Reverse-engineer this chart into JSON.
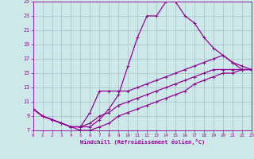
{
  "xlabel": "Windchill (Refroidissement éolien,°C)",
  "xlim": [
    0,
    23
  ],
  "ylim": [
    7,
    25
  ],
  "xticks": [
    0,
    1,
    2,
    3,
    4,
    5,
    6,
    7,
    8,
    9,
    10,
    11,
    12,
    13,
    14,
    15,
    16,
    17,
    18,
    19,
    20,
    21,
    22,
    23
  ],
  "yticks": [
    7,
    9,
    11,
    13,
    15,
    17,
    19,
    21,
    23,
    25
  ],
  "bg_color": "#cce8e8",
  "line_color": "#990099",
  "grid_color": "#aabbcc",
  "lines": [
    {
      "x": [
        0,
        1,
        2,
        3,
        4,
        5,
        6,
        7,
        8,
        9,
        10,
        11,
        12,
        13,
        14,
        15,
        16,
        17,
        18,
        19,
        20,
        21,
        22,
        23
      ],
      "y": [
        10,
        9,
        8.5,
        8,
        7.5,
        7.5,
        7.5,
        8.5,
        10,
        12,
        16,
        20,
        23,
        23,
        25,
        25,
        23,
        22,
        20,
        18.5,
        17.5,
        16.5,
        15.5,
        15.5
      ],
      "marker": "+",
      "markersize": 3.5,
      "lw": 0.9
    },
    {
      "x": [
        0,
        1,
        2,
        3,
        4,
        5,
        6,
        7,
        8,
        9,
        10,
        11,
        12,
        13,
        14,
        15,
        16,
        17,
        18,
        19,
        20,
        21,
        22,
        23
      ],
      "y": [
        10,
        9,
        8.5,
        8,
        7.5,
        7.5,
        9.5,
        12.5,
        12.5,
        12.5,
        12.5,
        13,
        13.5,
        14,
        14.5,
        15,
        15.5,
        16,
        16.5,
        17,
        17.5,
        16.5,
        16,
        15.5
      ],
      "marker": "+",
      "markersize": 3.5,
      "lw": 0.9
    },
    {
      "x": [
        0,
        1,
        2,
        3,
        4,
        5,
        6,
        7,
        8,
        9,
        10,
        11,
        12,
        13,
        14,
        15,
        16,
        17,
        18,
        19,
        20,
        21,
        22,
        23
      ],
      "y": [
        10,
        9,
        8.5,
        8,
        7.5,
        7.5,
        8,
        9,
        9.5,
        10.5,
        11,
        11.5,
        12,
        12.5,
        13,
        13.5,
        14,
        14.5,
        15,
        15.5,
        15.5,
        15.5,
        15.5,
        15.5
      ],
      "marker": "+",
      "markersize": 3.5,
      "lw": 0.9
    },
    {
      "x": [
        0,
        1,
        2,
        3,
        4,
        5,
        6,
        7,
        8,
        9,
        10,
        11,
        12,
        13,
        14,
        15,
        16,
        17,
        18,
        19,
        20,
        21,
        22,
        23
      ],
      "y": [
        10,
        9,
        8.5,
        8,
        7.5,
        7,
        7,
        7.5,
        8,
        9,
        9.5,
        10,
        10.5,
        11,
        11.5,
        12,
        12.5,
        13.5,
        14,
        14.5,
        15,
        15,
        15.5,
        15.5
      ],
      "marker": "+",
      "markersize": 3.5,
      "lw": 0.9
    }
  ]
}
